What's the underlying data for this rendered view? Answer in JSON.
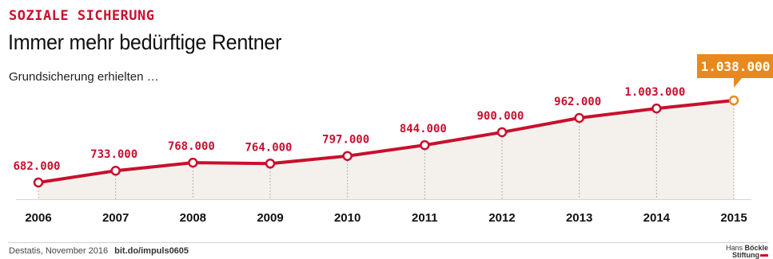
{
  "header": {
    "kicker": "SOZIALE SICHERUNG",
    "title": "Immer mehr bedürftige Rentner",
    "subtitle": "Grundsicherung erhielten …"
  },
  "footer": {
    "source": "Destatis, November 2016",
    "link": "bit.do/impuls0605",
    "brand_line1_a": "Hans",
    "brand_line1_b": "Böckle",
    "brand_line2": "Stiftung"
  },
  "colors": {
    "accent": "#c8102e",
    "highlight": "#e8891f",
    "area": "#f4f1ec",
    "text": "#111111"
  },
  "chart_data": {
    "type": "line",
    "categories": [
      "2006",
      "2007",
      "2008",
      "2009",
      "2010",
      "2011",
      "2012",
      "2013",
      "2014",
      "2015"
    ],
    "values": [
      682000,
      733000,
      768000,
      764000,
      797000,
      844000,
      900000,
      962000,
      1003000,
      1038000
    ],
    "labels": [
      "682.000",
      "733.000",
      "768.000",
      "764.000",
      "797.000",
      "844.000",
      "900.000",
      "962.000",
      "1.003.000",
      "1.038.000"
    ],
    "title": "Immer mehr bedürftige Rentner",
    "xlabel": "",
    "ylabel": "",
    "grid": false,
    "area_fill": true,
    "highlight_last": true
  }
}
